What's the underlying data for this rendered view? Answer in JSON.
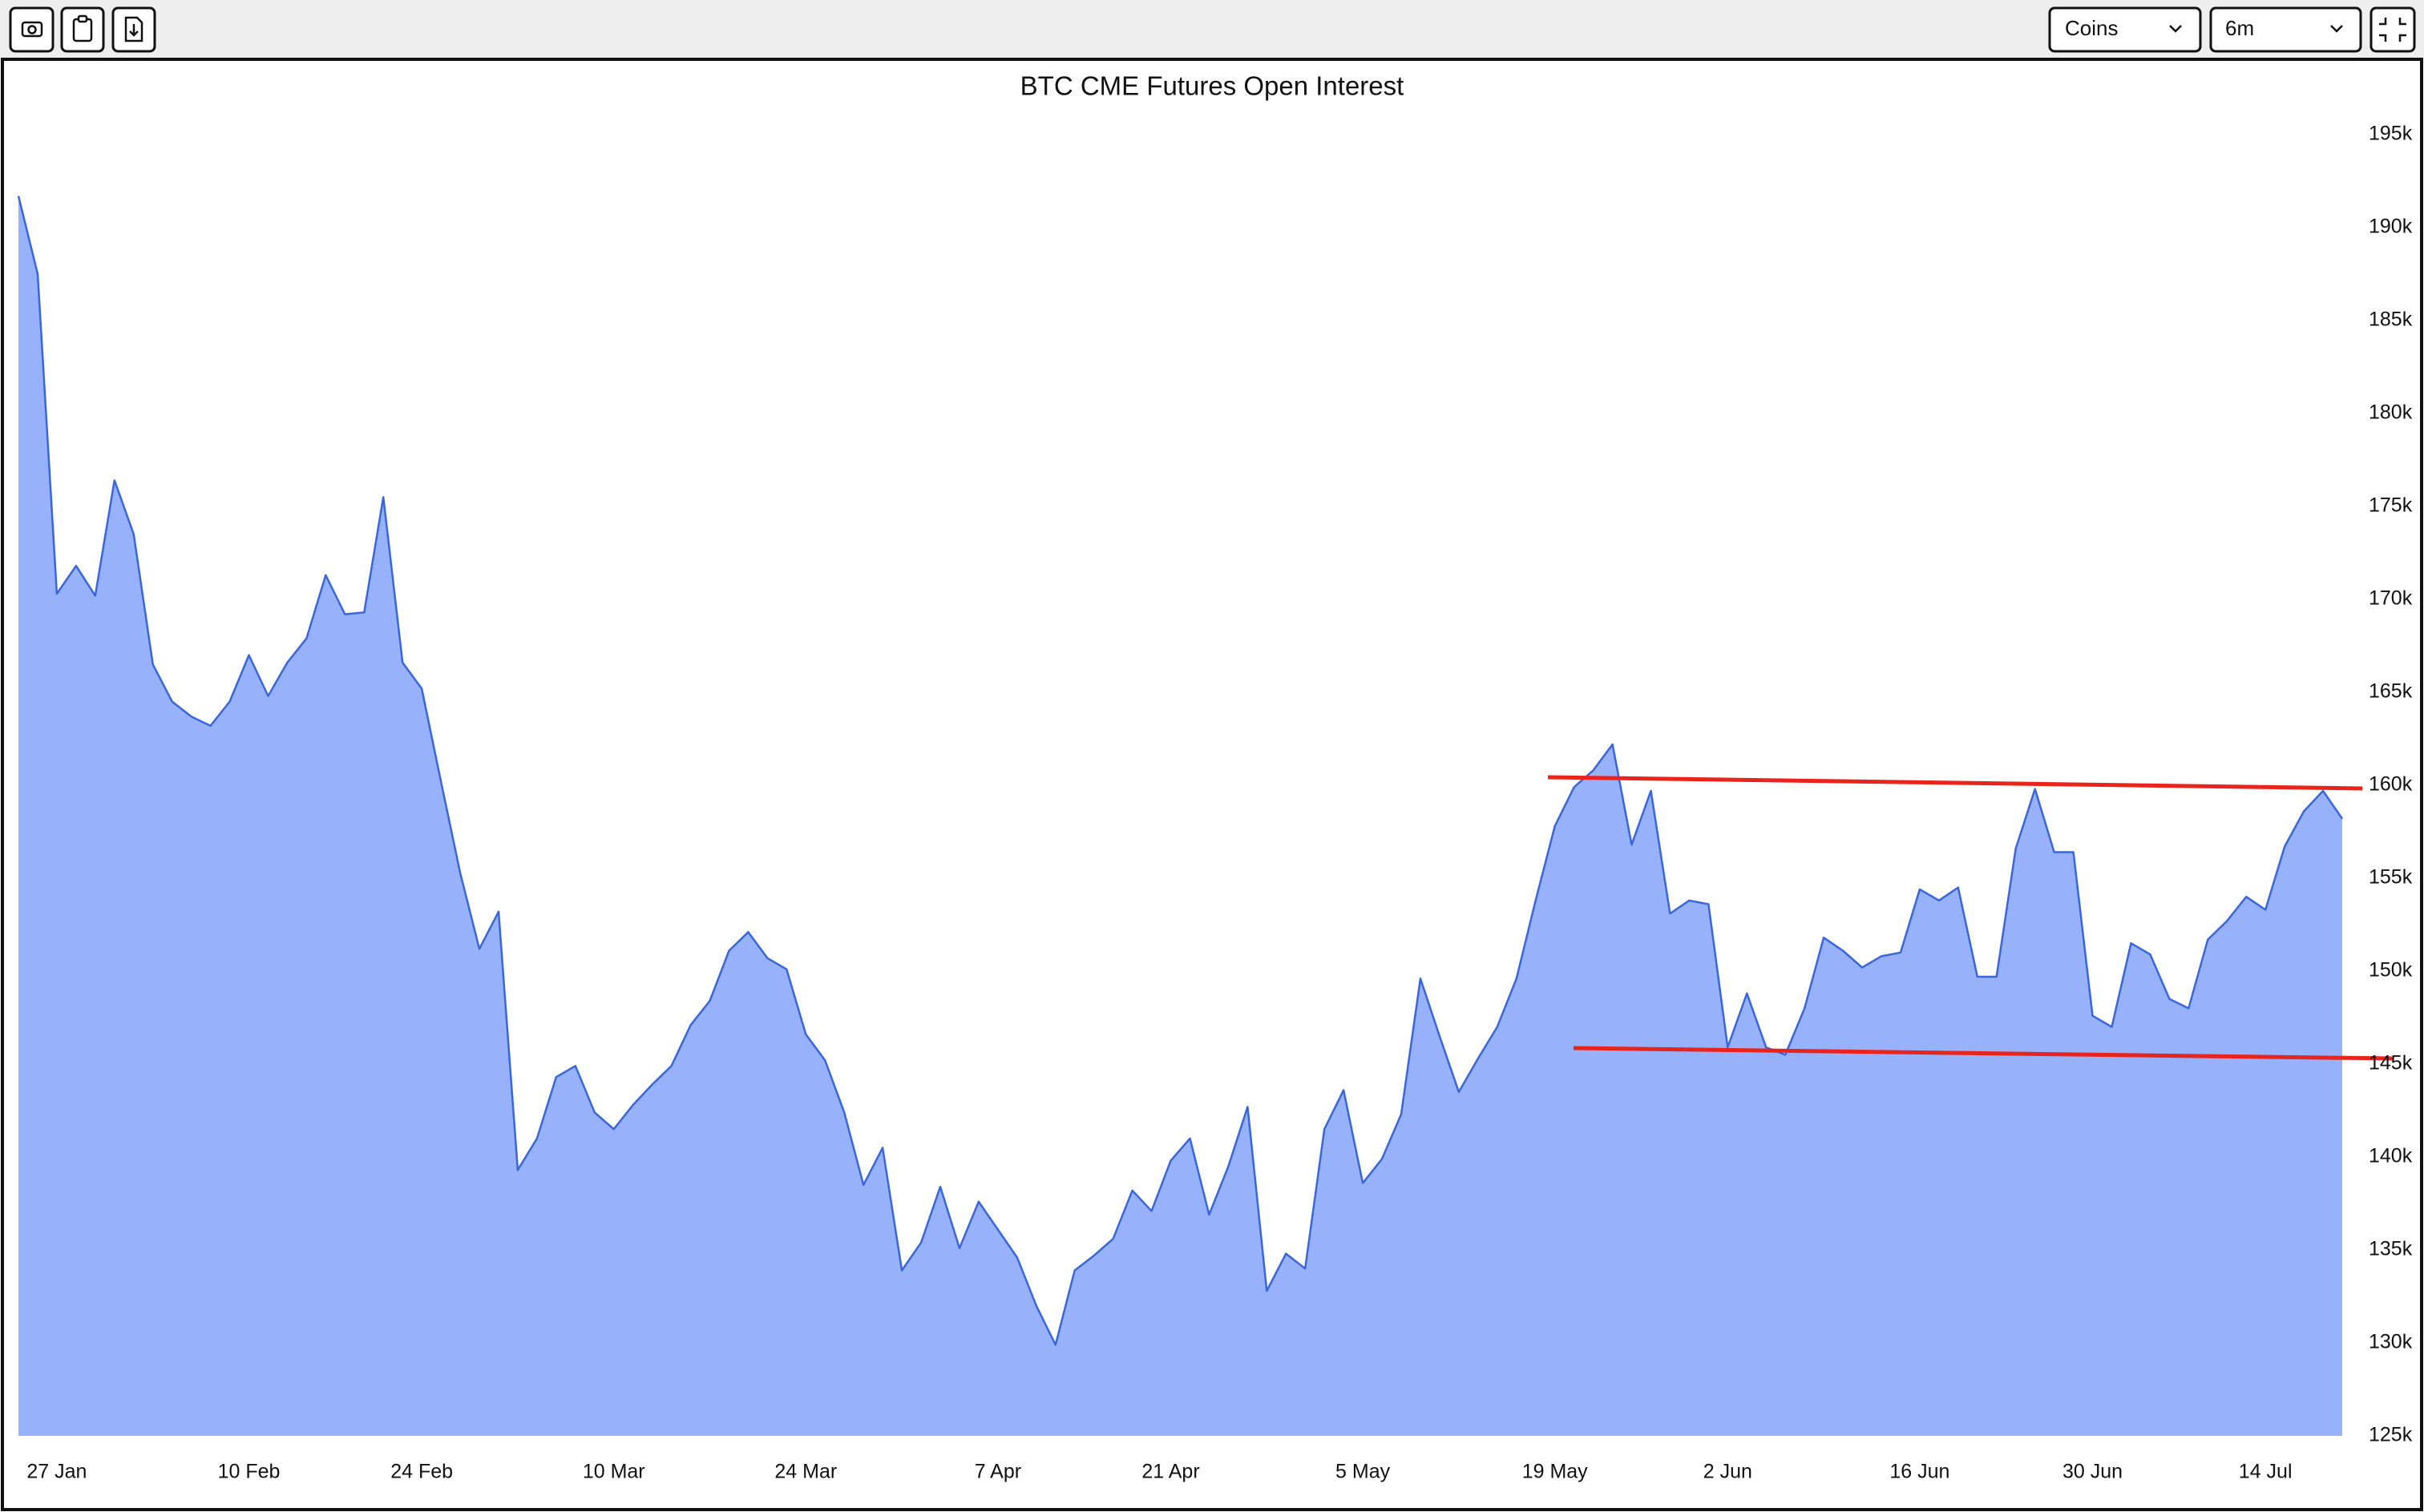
{
  "toolbar": {
    "unit_select": "Coins",
    "range_select": "6m"
  },
  "chart_data": {
    "type": "area",
    "title": "BTC CME Futures Open Interest",
    "categories": [
      null,
      null,
      "27 Jan",
      null,
      null,
      null,
      null,
      null,
      null,
      null,
      null,
      null,
      "10 Feb",
      null,
      null,
      null,
      null,
      null,
      null,
      null,
      null,
      "24 Feb",
      null,
      null,
      null,
      null,
      null,
      null,
      null,
      null,
      null,
      "10 Mar",
      null,
      null,
      null,
      null,
      null,
      null,
      null,
      null,
      null,
      "24 Mar",
      null,
      null,
      null,
      null,
      null,
      null,
      null,
      null,
      null,
      "7 Apr",
      null,
      null,
      null,
      null,
      null,
      null,
      null,
      null,
      "21 Apr",
      null,
      null,
      null,
      null,
      null,
      null,
      null,
      null,
      null,
      "5 May",
      null,
      null,
      null,
      null,
      null,
      null,
      null,
      null,
      null,
      "19 May",
      null,
      null,
      null,
      null,
      null,
      null,
      null,
      null,
      "2 Jun",
      null,
      null,
      null,
      null,
      null,
      null,
      null,
      null,
      null,
      "16 Jun",
      null,
      null,
      null,
      null,
      null,
      null,
      null,
      null,
      "30 Jun",
      null,
      null,
      null,
      null,
      null,
      null,
      null,
      null,
      "14 Jul",
      null,
      null,
      null,
      null
    ],
    "values": [
      191700,
      187500,
      170300,
      171800,
      170200,
      176400,
      173500,
      166500,
      164500,
      163700,
      163200,
      164500,
      167000,
      164800,
      166600,
      167900,
      171300,
      169200,
      169300,
      175500,
      166600,
      165200,
      160200,
      155300,
      151200,
      153200,
      139300,
      141000,
      144300,
      144900,
      142400,
      141500,
      142800,
      143900,
      144900,
      147100,
      148400,
      151100,
      152100,
      150700,
      150100,
      146600,
      145200,
      142400,
      138500,
      140500,
      133900,
      135400,
      138400,
      135100,
      137600,
      136100,
      134600,
      132000,
      129900,
      133900,
      134700,
      135600,
      138200,
      137100,
      139800,
      141000,
      136900,
      139500,
      142700,
      132800,
      134800,
      134000,
      141500,
      143600,
      138600,
      139900,
      142300,
      149600,
      146500,
      143500,
      145300,
      147000,
      149600,
      153800,
      157800,
      159900,
      160800,
      162200,
      156800,
      159700,
      153100,
      153800,
      153600,
      145900,
      148800,
      145900,
      145500,
      148000,
      151800,
      151100,
      150200,
      150800,
      151000,
      154400,
      153800,
      154500,
      149700,
      149700,
      156600,
      159800,
      156400,
      156400,
      147600,
      147000,
      151500,
      150900,
      148500,
      148000,
      151700,
      152700,
      154000,
      153300,
      156700,
      158600,
      159700,
      158200
    ],
    "color": "#97b1fb",
    "line_color": "#3a66dd",
    "ylim": [
      125000,
      195000
    ],
    "yticks": [
      {
        "value": 125000,
        "label": "125k"
      },
      {
        "value": 130000,
        "label": "130k"
      },
      {
        "value": 135000,
        "label": "135k"
      },
      {
        "value": 140000,
        "label": "140k"
      },
      {
        "value": 145000,
        "label": "145k"
      },
      {
        "value": 150000,
        "label": "150k"
      },
      {
        "value": 155000,
        "label": "155k"
      },
      {
        "value": 160000,
        "label": "160k"
      },
      {
        "value": 165000,
        "label": "165k"
      },
      {
        "value": 170000,
        "label": "170k"
      },
      {
        "value": 175000,
        "label": "175k"
      },
      {
        "value": 180000,
        "label": "180k"
      },
      {
        "value": 185000,
        "label": "185k"
      },
      {
        "value": 190000,
        "label": "190k"
      },
      {
        "value": 195000,
        "label": "195k"
      }
    ],
    "grid": false
  }
}
